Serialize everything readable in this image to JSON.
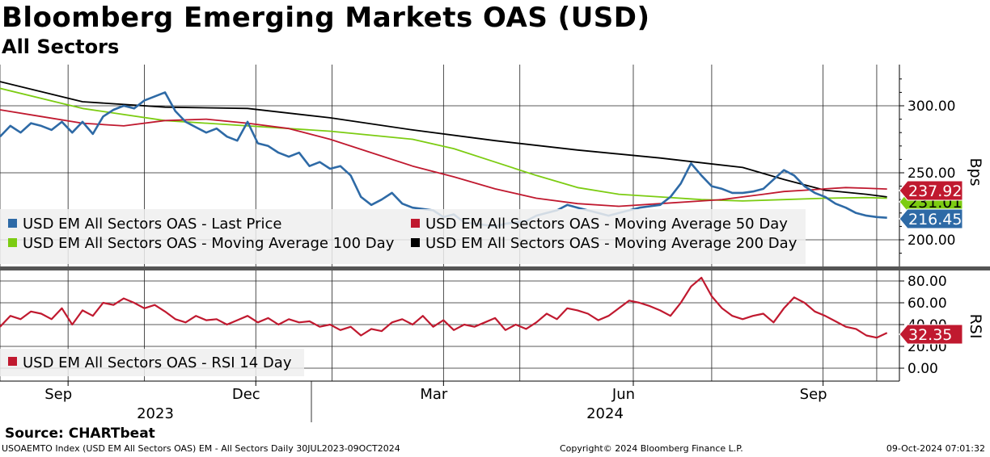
{
  "header": {
    "title": "Bloomberg Emerging Markets OAS (USD)",
    "subtitle": "All Sectors"
  },
  "footer": {
    "source": "Source: CHARTbeat",
    "index_info": "USOAEMTO Index (USD EM All Sectors OAS) EM - All Sectors  Daily 30JUL2023-09OCT2024",
    "copyright": "Copyright© 2024 Bloomberg Finance L.P.",
    "timestamp": "09-Oct-2024 07:01:32"
  },
  "colors": {
    "last_price": "#2e6aa6",
    "ma50": "#c0192f",
    "ma100": "#7ccc12",
    "ma200": "#000000",
    "rsi": "#c0192f",
    "panel_divider": "#555555"
  },
  "chart_data": [
    {
      "type": "line",
      "panel": "price",
      "ylabel": "Bps",
      "ylim": [
        175,
        325
      ],
      "y_ticks": [
        "200.00",
        "250.00",
        "300.00"
      ],
      "x_tick_labels": [
        "Sep",
        "Dec",
        "Mar",
        "Jun",
        "Sep"
      ],
      "x_tick_days": [
        33,
        124,
        215,
        307,
        399
      ],
      "year_labels": [
        "2023",
        "2024"
      ],
      "x_range_days": [
        0,
        436
      ],
      "legend": [
        "USD EM All Sectors OAS - Last Price",
        "USD EM All Sectors OAS - Moving Average 50 Day",
        "USD EM All Sectors OAS - Moving Average 100 Day",
        "USD EM All Sectors OAS - Moving Average 200 Day"
      ],
      "value_tags": [
        {
          "label": "237.92",
          "value": 237.92,
          "series": "Moving Average 50 Day"
        },
        {
          "label": "231.01",
          "value": 231.01,
          "series": "Moving Average 100 Day"
        },
        {
          "label": "216.45",
          "value": 216.45,
          "series": "Last Price"
        }
      ],
      "series": [
        {
          "name": "Last Price",
          "x": [
            0,
            5,
            10,
            15,
            20,
            25,
            30,
            35,
            40,
            45,
            50,
            55,
            60,
            65,
            70,
            75,
            80,
            85,
            90,
            95,
            100,
            105,
            110,
            115,
            120,
            125,
            130,
            135,
            140,
            145,
            150,
            155,
            160,
            165,
            170,
            175,
            180,
            185,
            190,
            195,
            200,
            205,
            210,
            215,
            220,
            225,
            230,
            235,
            240,
            245,
            250,
            255,
            260,
            265,
            270,
            275,
            280,
            285,
            290,
            295,
            300,
            305,
            310,
            315,
            320,
            325,
            330,
            335,
            340,
            345,
            350,
            355,
            360,
            365,
            370,
            375,
            380,
            385,
            390,
            395,
            400,
            405,
            410,
            415,
            420,
            425,
            430
          ],
          "y": [
            277,
            285,
            280,
            287,
            285,
            282,
            288,
            280,
            288,
            279,
            292,
            297,
            300,
            298,
            304,
            307,
            310,
            296,
            288,
            284,
            280,
            283,
            277,
            274,
            288,
            272,
            270,
            265,
            262,
            265,
            255,
            258,
            253,
            255,
            248,
            232,
            226,
            230,
            235,
            227,
            224,
            223,
            222,
            217,
            219,
            213,
            212,
            211,
            210,
            212,
            213,
            214,
            218,
            220,
            222,
            226,
            224,
            222,
            220,
            218,
            220,
            222,
            224,
            225,
            226,
            232,
            242,
            257,
            248,
            240,
            238,
            235,
            235,
            236,
            238,
            245,
            252,
            248,
            240,
            235,
            232,
            227,
            224,
            220,
            218,
            217,
            216.45
          ]
        },
        {
          "name": "Moving Average 50 Day",
          "x": [
            0,
            20,
            40,
            60,
            80,
            100,
            120,
            140,
            160,
            180,
            200,
            220,
            240,
            260,
            280,
            300,
            320,
            340,
            350,
            360,
            370,
            380,
            390,
            400,
            410,
            420,
            430
          ],
          "y": [
            297,
            292,
            287,
            285,
            289,
            290,
            287,
            283,
            275,
            265,
            255,
            247,
            238,
            231,
            227,
            225,
            227,
            229,
            230,
            232,
            234,
            236,
            237,
            238,
            239,
            238.5,
            237.92
          ]
        },
        {
          "name": "Moving Average 100 Day",
          "x": [
            0,
            40,
            80,
            120,
            160,
            200,
            220,
            240,
            260,
            280,
            300,
            320,
            340,
            360,
            380,
            400,
            420,
            430
          ],
          "y": [
            313,
            298,
            289,
            285,
            281,
            275,
            268,
            258,
            248,
            239,
            234,
            232,
            230,
            229,
            230,
            231,
            231.5,
            231.01
          ]
        },
        {
          "name": "Moving Average 200 Day",
          "x": [
            0,
            40,
            80,
            120,
            160,
            200,
            240,
            280,
            320,
            360,
            380,
            400,
            420,
            430
          ],
          "y": [
            318,
            303,
            299,
            298,
            291,
            282,
            274,
            267,
            261,
            254,
            245,
            237,
            234,
            232
          ]
        }
      ]
    },
    {
      "type": "line",
      "panel": "rsi",
      "ylabel": "RSI",
      "ylim": [
        -8,
        89
      ],
      "y_ticks": [
        "0.00",
        "20.00",
        "40.00",
        "60.00",
        "80.00"
      ],
      "legend": [
        "USD EM All Sectors OAS - RSI 14 Day"
      ],
      "value_tags": [
        {
          "label": "32.35",
          "value": 32.35,
          "series": "RSI 14 Day"
        }
      ],
      "series": [
        {
          "name": "RSI 14 Day",
          "x": [
            0,
            5,
            10,
            15,
            20,
            25,
            30,
            35,
            40,
            45,
            50,
            55,
            60,
            65,
            70,
            75,
            80,
            85,
            90,
            95,
            100,
            105,
            110,
            115,
            120,
            125,
            130,
            135,
            140,
            145,
            150,
            155,
            160,
            165,
            170,
            175,
            180,
            185,
            190,
            195,
            200,
            205,
            210,
            215,
            220,
            225,
            230,
            235,
            240,
            245,
            250,
            255,
            260,
            265,
            270,
            275,
            280,
            285,
            290,
            295,
            300,
            305,
            310,
            315,
            320,
            325,
            330,
            335,
            340,
            345,
            350,
            355,
            360,
            365,
            370,
            375,
            380,
            385,
            390,
            395,
            400,
            405,
            410,
            415,
            420,
            425,
            430
          ],
          "y": [
            38,
            48,
            45,
            52,
            50,
            45,
            55,
            40,
            53,
            48,
            60,
            58,
            64,
            60,
            55,
            58,
            52,
            45,
            42,
            48,
            44,
            45,
            40,
            44,
            48,
            42,
            46,
            40,
            45,
            42,
            43,
            38,
            40,
            35,
            38,
            30,
            36,
            34,
            42,
            45,
            40,
            48,
            38,
            44,
            35,
            40,
            38,
            42,
            46,
            35,
            40,
            36,
            42,
            50,
            45,
            55,
            53,
            50,
            44,
            48,
            55,
            62,
            60,
            57,
            53,
            48,
            60,
            75,
            83,
            66,
            55,
            48,
            45,
            48,
            50,
            42,
            55,
            65,
            60,
            52,
            48,
            43,
            38,
            36,
            30,
            28,
            32.35
          ]
        }
      ]
    }
  ]
}
